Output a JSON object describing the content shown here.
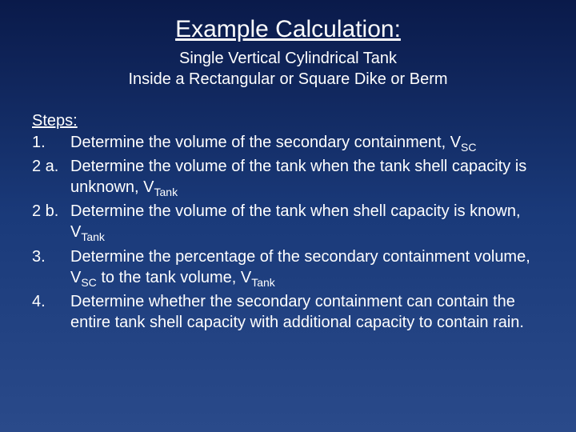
{
  "colors": {
    "background_top": "#0a1a4a",
    "background_mid": "#1a3a7a",
    "background_bottom": "#2a4a8a",
    "text": "#ffffff"
  },
  "typography": {
    "title_fontsize": 30,
    "subtitle_fontsize": 20,
    "body_fontsize": 20,
    "font_family": "Arial"
  },
  "title": "Example Calculation:",
  "subtitle_line1": "Single Vertical Cylindrical Tank",
  "subtitle_line2": "Inside a Rectangular or Square Dike or Berm",
  "steps_label": "Steps:",
  "steps": [
    {
      "num": "1.",
      "text_pre": "Determine the volume of the secondary containment, V",
      "sub": "SC",
      "text_post": ""
    },
    {
      "num": "2 a.",
      "text_pre": "Determine the volume of the tank when the tank shell capacity is unknown, V",
      "sub": "Tank",
      "text_post": ""
    },
    {
      "num": "2 b.",
      "text_pre": "Determine the volume of the tank when shell capacity is known, V",
      "sub": "Tank",
      "text_post": ""
    },
    {
      "num": "3.",
      "text_pre": "Determine the percentage of the secondary containment volume, V",
      "sub": "SC",
      "text_post": " to the tank volume, V",
      "sub2": "Tank",
      "text_post2": ""
    },
    {
      "num": "4.",
      "text_pre": "Determine whether the secondary containment can contain the entire tank shell capacity with additional capacity to contain rain.",
      "sub": "",
      "text_post": ""
    }
  ]
}
